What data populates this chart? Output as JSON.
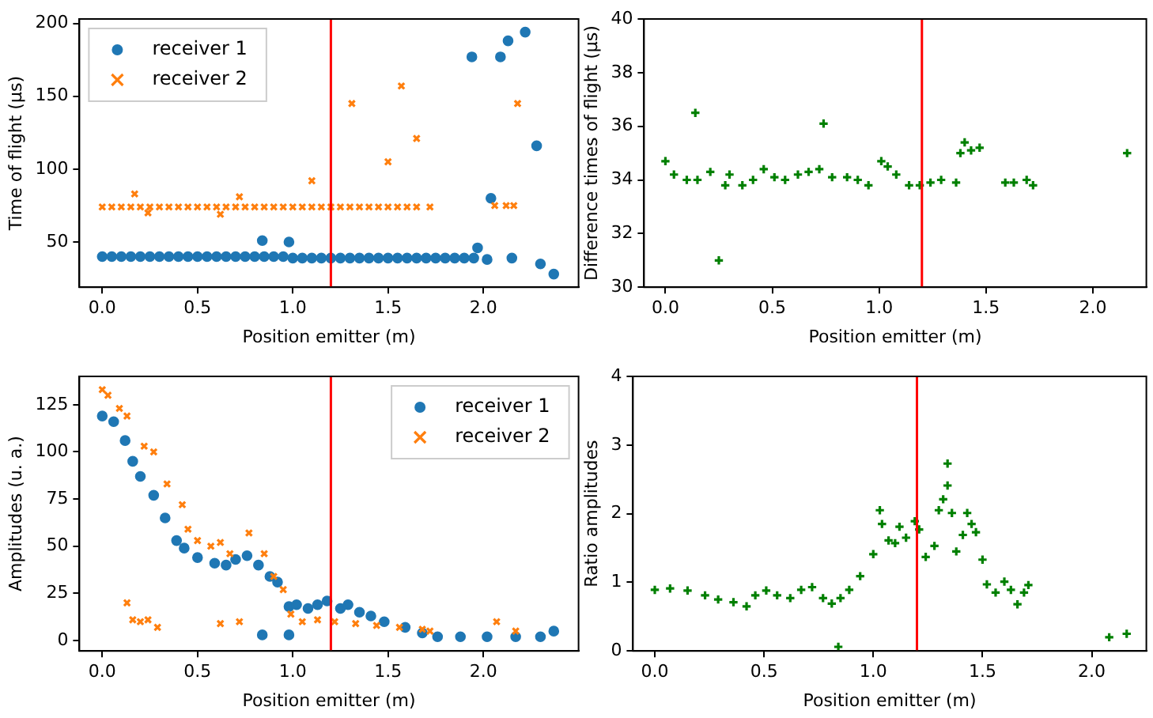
{
  "chart_data": [
    {
      "type": "scatter",
      "xlabel": "Position emitter (m)",
      "ylabel": "Time of flight (μs)",
      "xlim": [
        -0.12,
        2.5
      ],
      "ylim": [
        19,
        203
      ],
      "xticks": [
        {
          "value": 0,
          "label": "0.0"
        },
        {
          "value": 0.5,
          "label": "0.5"
        },
        {
          "value": 1,
          "label": "1.0"
        },
        {
          "value": 1.5,
          "label": "1.5"
        },
        {
          "value": 2,
          "label": "2.0"
        }
      ],
      "yticks": [
        50,
        100,
        150,
        200
      ],
      "grid": false,
      "legend": "top left",
      "ref_lines": [
        {
          "axis": "x",
          "value": 1.2,
          "color": "#ff0000"
        }
      ],
      "series": [
        {
          "name": "receiver 1",
          "color": "#1f77b4",
          "marker": "circle",
          "x": [
            0,
            0.05,
            0.1,
            0.15,
            0.2,
            0.25,
            0.3,
            0.35,
            0.4,
            0.45,
            0.5,
            0.55,
            0.6,
            0.65,
            0.7,
            0.75,
            0.8,
            0.85,
            0.9,
            0.95,
            1.0,
            1.05,
            1.1,
            1.15,
            1.2,
            1.25,
            1.3,
            1.35,
            1.4,
            1.45,
            1.5,
            1.55,
            1.6,
            1.65,
            1.7,
            1.75,
            1.8,
            1.85,
            1.9,
            1.95,
            0.84,
            0.98,
            1.94,
            1.97,
            2.02,
            2.04,
            2.09,
            2.13,
            2.15,
            2.22,
            2.28,
            2.3,
            2.37
          ],
          "values": [
            40,
            40,
            40,
            40,
            40,
            40,
            40,
            40,
            40,
            40,
            40,
            40,
            40,
            40,
            40,
            40,
            40,
            40,
            40,
            40,
            39,
            39,
            39,
            39,
            39,
            39,
            39,
            39,
            39,
            39,
            39,
            39,
            39,
            39,
            39,
            39,
            39,
            39,
            39,
            39,
            51,
            50,
            177,
            46,
            38,
            80,
            177,
            188,
            39,
            194,
            116,
            35,
            28
          ]
        },
        {
          "name": "receiver 2",
          "color": "#ff7f0e",
          "marker": "cross",
          "x": [
            0,
            0.05,
            0.1,
            0.15,
            0.2,
            0.25,
            0.3,
            0.35,
            0.4,
            0.45,
            0.5,
            0.55,
            0.6,
            0.65,
            0.7,
            0.75,
            0.8,
            0.85,
            0.9,
            0.95,
            1.0,
            1.05,
            1.1,
            1.15,
            1.2,
            1.25,
            1.3,
            1.35,
            1.4,
            1.45,
            1.5,
            1.55,
            1.6,
            1.65,
            1.72,
            0.17,
            0.24,
            0.62,
            0.72,
            1.1,
            1.31,
            1.5,
            1.57,
            1.65,
            2.06,
            2.12,
            2.16,
            2.18
          ],
          "values": [
            74,
            74,
            74,
            74,
            74,
            74,
            74,
            74,
            74,
            74,
            74,
            74,
            74,
            74,
            74,
            74,
            74,
            74,
            74,
            74,
            74,
            74,
            74,
            74,
            74,
            74,
            74,
            74,
            74,
            74,
            74,
            74,
            74,
            74,
            74,
            83,
            70,
            69,
            81,
            92,
            145,
            105,
            157,
            121,
            75,
            75,
            75,
            145
          ]
        }
      ]
    },
    {
      "type": "scatter",
      "xlabel": "Position emitter (m)",
      "ylabel": "Difference times of flight (μs)",
      "xlim": [
        -0.1,
        2.25
      ],
      "ylim": [
        30,
        40
      ],
      "xticks": [
        {
          "value": 0,
          "label": "0.0"
        },
        {
          "value": 0.5,
          "label": "0.5"
        },
        {
          "value": 1,
          "label": "1.0"
        },
        {
          "value": 1.5,
          "label": "1.5"
        },
        {
          "value": 2,
          "label": "2.0"
        }
      ],
      "yticks": [
        30,
        32,
        34,
        36,
        38,
        40
      ],
      "grid": false,
      "ref_lines": [
        {
          "axis": "x",
          "value": 1.2,
          "color": "#ff0000"
        }
      ],
      "series": [
        {
          "color": "#008000",
          "marker": "plus",
          "x": [
            0,
            0.04,
            0.1,
            0.15,
            0.21,
            0.28,
            0.3,
            0.36,
            0.41,
            0.46,
            0.51,
            0.56,
            0.62,
            0.67,
            0.72,
            0.78,
            0.85,
            0.9,
            0.95,
            1.01,
            1.04,
            1.08,
            1.14,
            1.19,
            1.24,
            1.29,
            1.36,
            1.38,
            1.4,
            1.43,
            1.47,
            1.59,
            1.63,
            1.69,
            1.72,
            0.14,
            0.74,
            0.25,
            2.16
          ],
          "values": [
            34.7,
            34.2,
            34.0,
            34.0,
            34.3,
            33.8,
            34.2,
            33.8,
            34.0,
            34.4,
            34.1,
            34.0,
            34.2,
            34.3,
            34.4,
            34.1,
            34.1,
            34.0,
            33.8,
            34.7,
            34.5,
            34.2,
            33.8,
            33.8,
            33.9,
            34.0,
            33.9,
            35.0,
            35.4,
            35.1,
            35.2,
            33.9,
            33.9,
            34.0,
            33.8,
            36.5,
            36.1,
            31.0,
            35.0
          ]
        }
      ]
    },
    {
      "type": "scatter",
      "xlabel": "Position emitter (m)",
      "ylabel": "Amplitudes (u. a.)",
      "xlim": [
        -0.12,
        2.5
      ],
      "ylim": [
        -5.5,
        140
      ],
      "xticks": [
        {
          "value": 0,
          "label": "0.0"
        },
        {
          "value": 0.5,
          "label": "0.5"
        },
        {
          "value": 1,
          "label": "1.0"
        },
        {
          "value": 1.5,
          "label": "1.5"
        },
        {
          "value": 2,
          "label": "2.0"
        }
      ],
      "yticks": [
        0,
        25,
        50,
        75,
        100,
        125
      ],
      "grid": false,
      "legend": "top right",
      "ref_lines": [
        {
          "axis": "x",
          "value": 1.2,
          "color": "#ff0000"
        }
      ],
      "series": [
        {
          "name": "receiver 1",
          "color": "#1f77b4",
          "marker": "circle",
          "x": [
            0,
            0.06,
            0.12,
            0.16,
            0.2,
            0.27,
            0.33,
            0.39,
            0.43,
            0.5,
            0.59,
            0.65,
            0.7,
            0.76,
            0.82,
            0.88,
            0.92,
            0.98,
            1.02,
            1.08,
            1.13,
            1.18,
            1.25,
            1.29,
            1.35,
            1.41,
            1.48,
            1.59,
            1.68,
            1.76,
            1.88,
            2.02,
            2.17,
            2.3,
            2.37,
            0.84,
            0.98
          ],
          "values": [
            119,
            116,
            106,
            95,
            87,
            77,
            65,
            53,
            49,
            44,
            41,
            40,
            43,
            45,
            40,
            34,
            31,
            18,
            19,
            17,
            19,
            21,
            17,
            19,
            15,
            13,
            10,
            7,
            4,
            2,
            2,
            2,
            2,
            2,
            5,
            3,
            3
          ]
        },
        {
          "name": "receiver 2",
          "color": "#ff7f0e",
          "marker": "cross",
          "x": [
            0,
            0.03,
            0.09,
            0.13,
            0.22,
            0.27,
            0.34,
            0.42,
            0.45,
            0.5,
            0.57,
            0.62,
            0.67,
            0.77,
            0.85,
            0.9,
            0.95,
            0.99,
            1.05,
            1.13,
            1.22,
            1.33,
            1.44,
            1.56,
            1.68,
            1.72,
            0.13,
            0.16,
            0.2,
            0.24,
            0.29,
            0.62,
            0.72,
            2.07,
            2.17
          ],
          "values": [
            133,
            130,
            123,
            119,
            103,
            100,
            83,
            72,
            59,
            53,
            50,
            52,
            46,
            57,
            46,
            34,
            27,
            14,
            10,
            11,
            10,
            9,
            8,
            7,
            6,
            5,
            20,
            11,
            10,
            11,
            7,
            9,
            10,
            10,
            5
          ]
        }
      ]
    },
    {
      "type": "scatter",
      "xlabel": "Position emitter (m)",
      "ylabel": "Ratio amplitudes",
      "xlim": [
        -0.1,
        2.25
      ],
      "ylim": [
        0,
        4
      ],
      "xticks": [
        {
          "value": 0,
          "label": "0.0"
        },
        {
          "value": 0.5,
          "label": "0.5"
        },
        {
          "value": 1,
          "label": "1.0"
        },
        {
          "value": 1.5,
          "label": "1.5"
        },
        {
          "value": 2,
          "label": "2.0"
        }
      ],
      "yticks": [
        0,
        1,
        2,
        3,
        4
      ],
      "grid": false,
      "ref_lines": [
        {
          "axis": "x",
          "value": 1.2,
          "color": "#ff0000"
        }
      ],
      "series": [
        {
          "color": "#008000",
          "marker": "plus",
          "x": [
            0,
            0.07,
            0.15,
            0.23,
            0.29,
            0.36,
            0.42,
            0.46,
            0.51,
            0.56,
            0.62,
            0.67,
            0.72,
            0.77,
            0.81,
            0.85,
            0.89,
            0.94,
            1.0,
            1.03,
            1.04,
            1.07,
            1.1,
            1.12,
            1.15,
            1.19,
            1.21,
            1.24,
            1.28,
            1.3,
            1.32,
            1.34,
            1.34,
            1.36,
            1.38,
            1.41,
            1.43,
            1.45,
            1.47,
            1.5,
            1.52,
            1.56,
            1.6,
            1.63,
            1.66,
            1.69,
            1.71,
            0.84,
            2.08,
            2.16
          ],
          "values": [
            0.89,
            0.91,
            0.88,
            0.81,
            0.75,
            0.71,
            0.65,
            0.81,
            0.88,
            0.81,
            0.77,
            0.89,
            0.93,
            0.77,
            0.69,
            0.77,
            0.89,
            1.09,
            1.41,
            2.05,
            1.85,
            1.61,
            1.57,
            1.81,
            1.65,
            1.89,
            1.77,
            1.37,
            1.53,
            2.05,
            2.21,
            2.73,
            2.41,
            2.01,
            1.45,
            1.69,
            2.01,
            1.85,
            1.73,
            1.33,
            0.97,
            0.85,
            1.01,
            0.89,
            0.68,
            0.85,
            0.96,
            0.06,
            0.2,
            0.25
          ]
        }
      ]
    }
  ]
}
